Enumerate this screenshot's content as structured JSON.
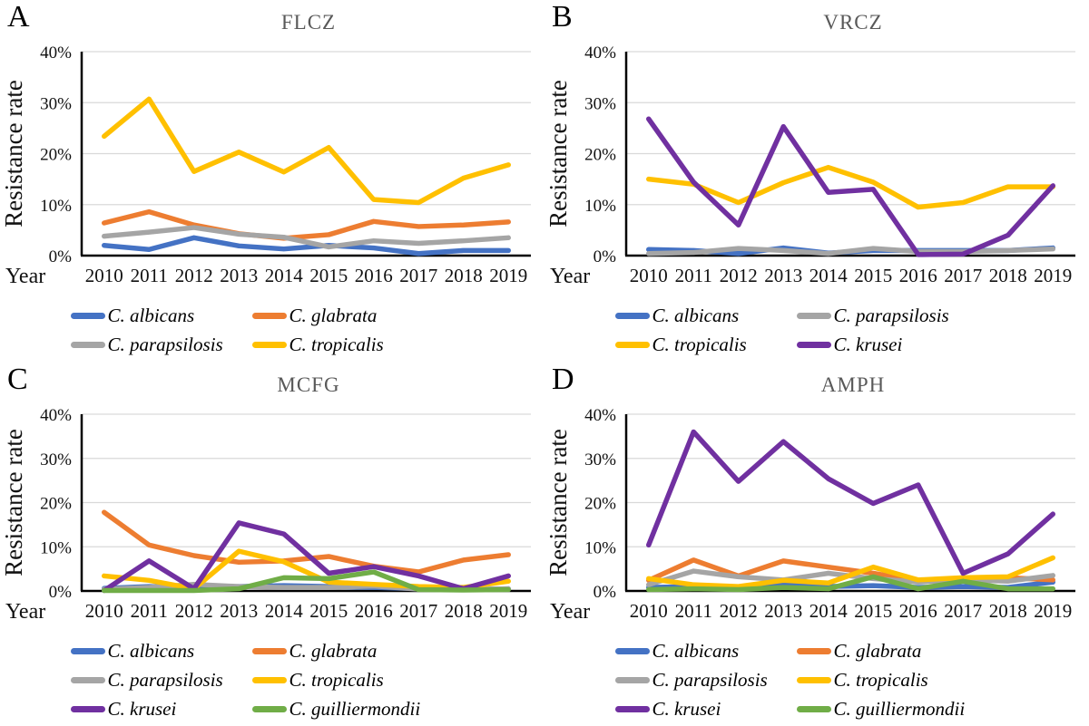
{
  "figure": {
    "background": "#ffffff",
    "shared_xlabel": "Year",
    "shared_ylabel": "Resistance rate"
  },
  "style_colors": {
    "c_albicans": "#4472C4",
    "c_glabrata": "#ED7D31",
    "c_parapsilosis": "#A5A5A5",
    "c_tropicalis": "#FFC000",
    "c_krusei": "#7030A0",
    "c_guilliermondii": "#70AD47",
    "gridline": "#D9D9D9",
    "axis": "#000000",
    "title_text": "#595959"
  },
  "chart_data": [
    {
      "panel_label": "A",
      "title": "FLCZ",
      "type": "line",
      "x": [
        2010,
        2011,
        2012,
        2013,
        2014,
        2015,
        2016,
        2017,
        2018,
        2019
      ],
      "xlabel": "Year",
      "ylabel": "Resistance rate",
      "ylim": [
        0,
        40
      ],
      "ytick_labels": [
        "0%",
        "10%",
        "20%",
        "30%",
        "40%"
      ],
      "grid": true,
      "legend_position": "bottom",
      "series": [
        {
          "name": "C. albicans",
          "color": "#4472C4",
          "values": [
            2.0,
            1.2,
            3.5,
            1.9,
            1.3,
            2.0,
            1.5,
            0.4,
            1.0,
            1.0
          ]
        },
        {
          "name": "C. glabrata",
          "color": "#ED7D31",
          "values": [
            6.4,
            8.6,
            6.0,
            4.3,
            3.4,
            4.1,
            6.7,
            5.7,
            6.0,
            6.6
          ]
        },
        {
          "name": "C. parapsilosis",
          "color": "#A5A5A5",
          "values": [
            3.8,
            4.6,
            5.5,
            4.2,
            3.6,
            1.7,
            2.9,
            2.4,
            2.9,
            3.5
          ]
        },
        {
          "name": "C. tropicalis",
          "color": "#FFC000",
          "values": [
            23.4,
            30.7,
            16.5,
            20.3,
            16.4,
            21.2,
            11.0,
            10.4,
            15.2,
            17.8
          ]
        }
      ]
    },
    {
      "panel_label": "B",
      "title": "VRCZ",
      "type": "line",
      "x": [
        2010,
        2011,
        2012,
        2013,
        2014,
        2015,
        2016,
        2017,
        2018,
        2019
      ],
      "xlabel": "Year",
      "ylabel": "Resistance rate",
      "ylim": [
        0,
        40
      ],
      "ytick_labels": [
        "0%",
        "10%",
        "20%",
        "30%",
        "40%"
      ],
      "grid": true,
      "legend_position": "bottom",
      "series": [
        {
          "name": "C. albicans",
          "color": "#4472C4",
          "values": [
            1.2,
            1.0,
            0.4,
            1.5,
            0.5,
            1.0,
            1.0,
            1.0,
            1.0,
            1.5
          ]
        },
        {
          "name": "C. parapsilosis",
          "color": "#A5A5A5",
          "values": [
            0.4,
            0.6,
            1.4,
            1.0,
            0.4,
            1.4,
            0.8,
            0.8,
            1.0,
            1.3
          ]
        },
        {
          "name": "C. tropicalis",
          "color": "#FFC000",
          "values": [
            15.0,
            14.0,
            10.4,
            14.3,
            17.3,
            14.4,
            9.5,
            10.4,
            13.5,
            13.5
          ]
        },
        {
          "name": "C. krusei",
          "color": "#7030A0",
          "values": [
            26.8,
            14.4,
            6.0,
            25.3,
            12.4,
            13.0,
            0.2,
            0.3,
            4.0,
            13.7
          ]
        }
      ]
    },
    {
      "panel_label": "C",
      "title": "MCFG",
      "type": "line",
      "x": [
        2010,
        2011,
        2012,
        2013,
        2014,
        2015,
        2016,
        2017,
        2018,
        2019
      ],
      "xlabel": "Year",
      "ylabel": "Resistance rate",
      "ylim": [
        0,
        40
      ],
      "ytick_labels": [
        "0%",
        "10%",
        "20%",
        "30%",
        "40%"
      ],
      "grid": true,
      "legend_position": "bottom",
      "series": [
        {
          "name": "C. albicans",
          "color": "#4472C4",
          "values": [
            0.6,
            1.0,
            0.7,
            1.0,
            1.2,
            1.0,
            0.8,
            0.5,
            0.3,
            0.5
          ]
        },
        {
          "name": "C. glabrata",
          "color": "#ED7D31",
          "values": [
            17.8,
            10.4,
            8.0,
            6.5,
            6.8,
            7.8,
            5.6,
            4.3,
            7.0,
            8.2
          ]
        },
        {
          "name": "C. parapsilosis",
          "color": "#A5A5A5",
          "values": [
            0.4,
            0.8,
            1.5,
            1.0,
            0.8,
            0.8,
            1.1,
            0.4,
            0.3,
            0.5
          ]
        },
        {
          "name": "C. tropicalis",
          "color": "#FFC000",
          "values": [
            3.4,
            2.4,
            0.5,
            9.0,
            6.6,
            2.0,
            1.5,
            1.0,
            0.8,
            2.2
          ]
        },
        {
          "name": "C. krusei",
          "color": "#7030A0",
          "values": [
            0.1,
            6.8,
            0.5,
            15.4,
            12.9,
            4.0,
            5.5,
            3.4,
            0.5,
            3.4
          ]
        },
        {
          "name": "C. guilliermondii",
          "color": "#70AD47",
          "values": [
            0.1,
            0.1,
            0.1,
            0.5,
            3.0,
            2.8,
            4.3,
            0.3,
            0.2,
            0.3
          ]
        }
      ]
    },
    {
      "panel_label": "D",
      "title": "AMPH",
      "type": "line",
      "x": [
        2010,
        2011,
        2012,
        2013,
        2014,
        2015,
        2016,
        2017,
        2018,
        2019
      ],
      "xlabel": "Year",
      "ylabel": "Resistance rate",
      "ylim": [
        0,
        40
      ],
      "ytick_labels": [
        "0%",
        "10%",
        "20%",
        "30%",
        "40%"
      ],
      "grid": true,
      "legend_position": "bottom",
      "series": [
        {
          "name": "C. albicans",
          "color": "#4472C4",
          "values": [
            0.8,
            1.0,
            0.8,
            1.5,
            1.0,
            1.2,
            0.8,
            1.0,
            0.8,
            2.0
          ]
        },
        {
          "name": "C. glabrata",
          "color": "#ED7D31",
          "values": [
            2.4,
            7.0,
            3.4,
            6.8,
            5.4,
            4.0,
            2.3,
            2.2,
            3.0,
            2.5
          ]
        },
        {
          "name": "C. parapsilosis",
          "color": "#A5A5A5",
          "values": [
            1.4,
            4.5,
            3.2,
            2.5,
            4.0,
            2.8,
            2.0,
            2.5,
            2.2,
            3.5
          ]
        },
        {
          "name": "C. tropicalis",
          "color": "#FFC000",
          "values": [
            2.8,
            1.4,
            1.0,
            2.4,
            1.8,
            5.4,
            2.5,
            3.0,
            3.2,
            7.5
          ]
        },
        {
          "name": "C. krusei",
          "color": "#7030A0",
          "values": [
            10.4,
            36.0,
            24.8,
            33.8,
            25.4,
            19.8,
            24.0,
            4.0,
            8.4,
            17.4
          ]
        },
        {
          "name": "C. guilliermondii",
          "color": "#70AD47",
          "values": [
            0.3,
            0.5,
            0.3,
            0.8,
            0.5,
            3.2,
            0.5,
            2.2,
            0.5,
            0.5
          ]
        }
      ]
    }
  ]
}
